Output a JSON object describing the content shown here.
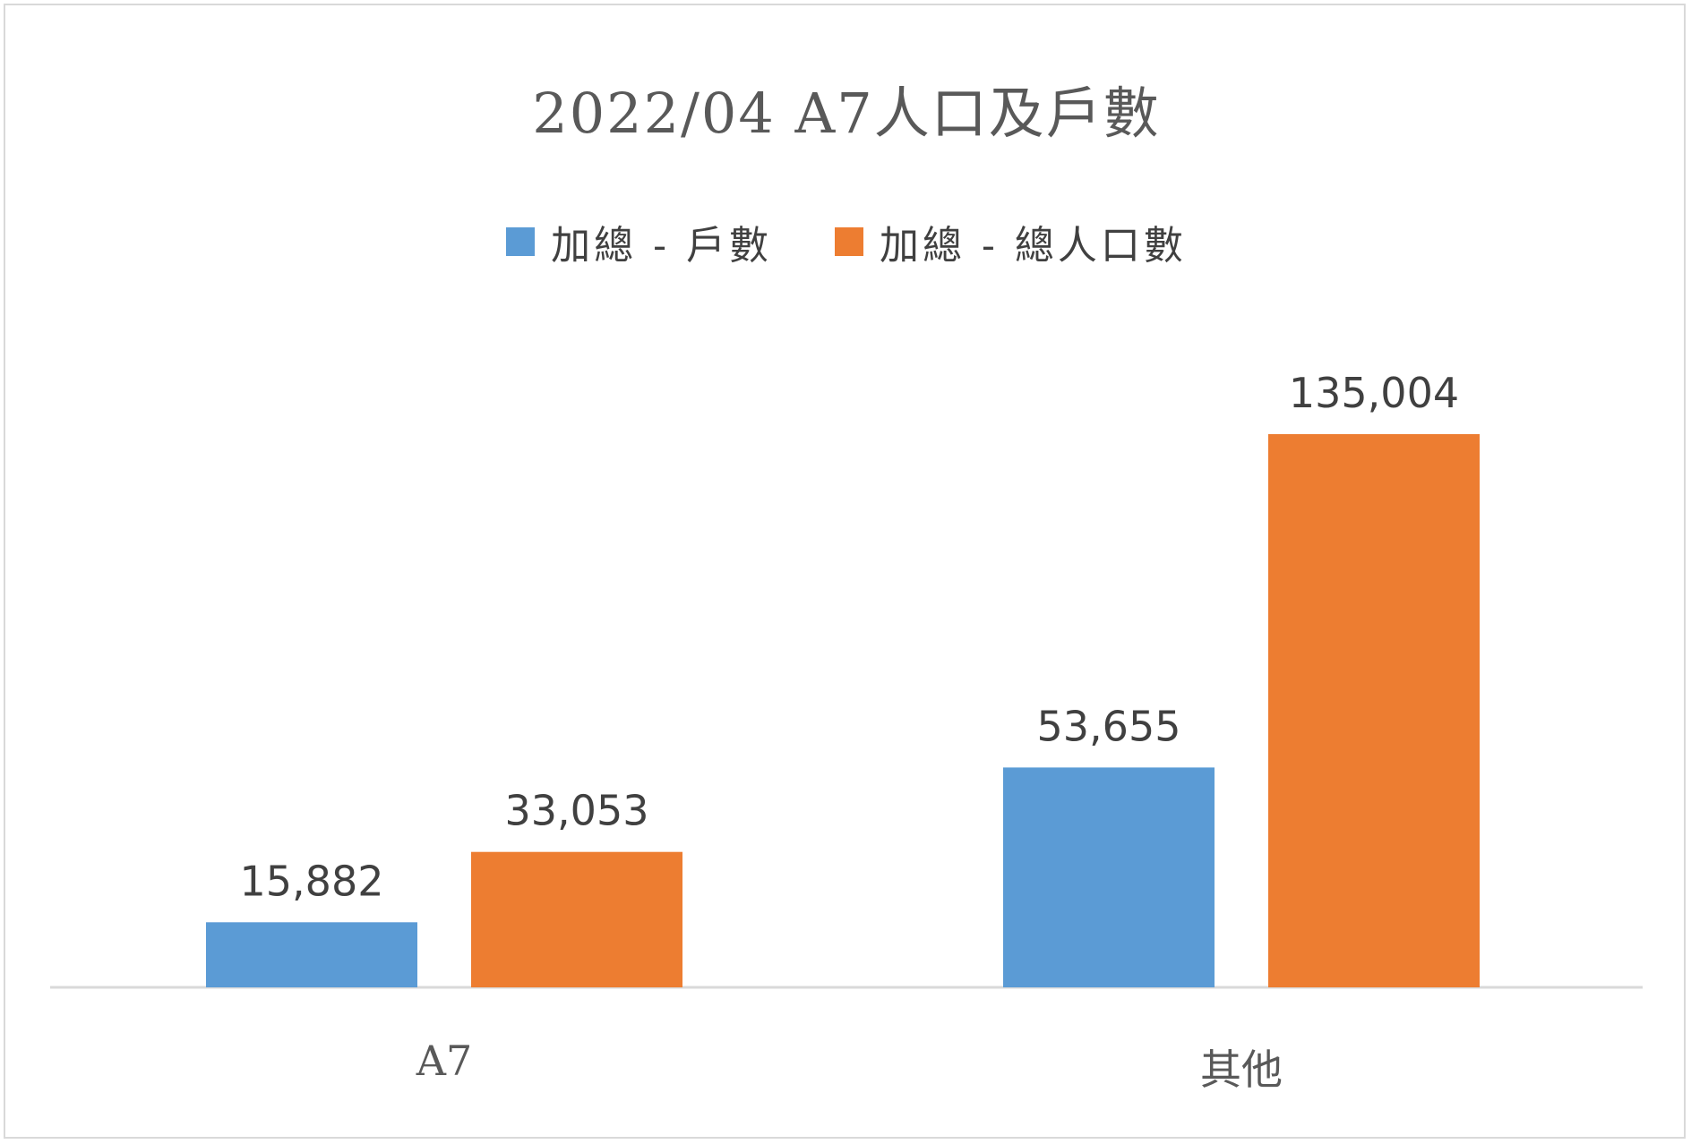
{
  "chart_data": {
    "type": "bar",
    "title": "2022/04 A7人口及戶數",
    "categories": [
      "A7",
      "其他"
    ],
    "series": [
      {
        "name": "加總 - 戶數",
        "values": [
          15882,
          53655
        ],
        "labels": [
          "15,882",
          "53,655"
        ],
        "color": "#5b9bd5"
      },
      {
        "name": "加總 - 總人口數",
        "values": [
          33053,
          135004
        ],
        "labels": [
          "33,053",
          "135,004"
        ],
        "color": "#ed7d31"
      }
    ],
    "xlabel": "",
    "ylabel": "",
    "ylim": [
      0,
      160000
    ],
    "grid": false,
    "legend": "top"
  }
}
